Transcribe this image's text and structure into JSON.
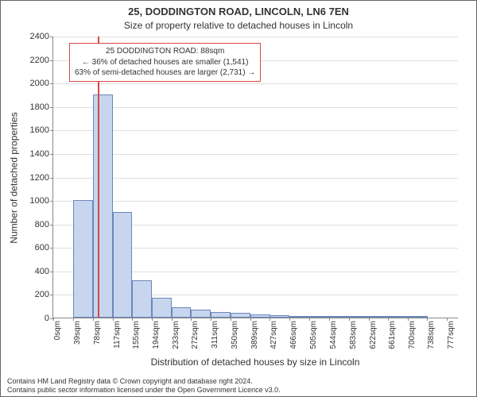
{
  "title_line1": "25, DODDINGTON ROAD, LINCOLN, LN6 7EN",
  "title_line2": "Size of property relative to detached houses in Lincoln",
  "ylabel": "Number of detached properties",
  "xlabel": "Distribution of detached houses by size in Lincoln",
  "annotation": {
    "line1": "25 DODDINGTON ROAD: 88sqm",
    "line2": "← 36% of detached houses are smaller (1,541)",
    "line3": "63% of semi-detached houses are larger (2,731) →"
  },
  "footer": {
    "line1": "Contains HM Land Registry data © Crown copyright and database right 2024.",
    "line2": "Contains public sector information licensed under the Open Government Licence v3.0."
  },
  "chart": {
    "type": "bar",
    "background_color": "#ffffff",
    "grid_color": "#e0e0e0",
    "axis_color": "#888888",
    "bar_fill": "#c7d6ee",
    "bar_stroke": "#6b87b9",
    "marker_color": "#d94848",
    "marker_x": 88,
    "title_fontsize": 13,
    "subtitle_fontsize": 12,
    "label_fontsize": 12,
    "tick_fontsize": 11,
    "xtick_fontsize": 10,
    "annotation_fontsize": 10,
    "xlim": [
      0,
      800
    ],
    "ylim": [
      0,
      2400
    ],
    "ytick_step": 200,
    "xticks": [
      0,
      39,
      78,
      117,
      155,
      194,
      233,
      272,
      311,
      350,
      389,
      427,
      466,
      505,
      544,
      583,
      622,
      661,
      700,
      738,
      777
    ],
    "xtick_unit": "sqm",
    "bin_width": 39,
    "values": [
      0,
      1000,
      1900,
      900,
      320,
      170,
      90,
      70,
      50,
      40,
      25,
      18,
      12,
      8,
      5,
      3,
      2,
      1,
      1,
      0
    ]
  }
}
